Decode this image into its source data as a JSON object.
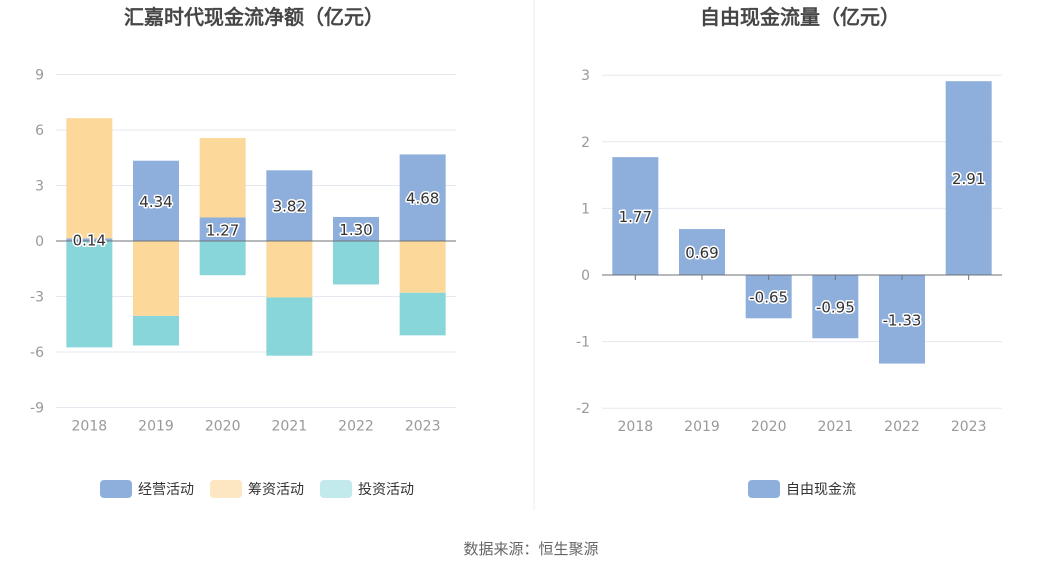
{
  "footer": {
    "source": "数据来源：恒生聚源"
  },
  "colors": {
    "operating": "#8eaedb",
    "financing": "#fdd89b",
    "investing": "#88d6da",
    "legend_financing": "#fde7c2",
    "legend_investing": "#c2e9ec",
    "free_cash_flow": "#8eaedb",
    "axis": "#6e7079",
    "grid": "#e6e8f0",
    "tick_label": "#999999",
    "title": "#464646"
  },
  "chart_data": [
    {
      "type": "bar",
      "stacked": true,
      "title": "汇嘉时代现金流净额（亿元）",
      "categories": [
        "2018",
        "2019",
        "2020",
        "2021",
        "2022",
        "2023"
      ],
      "ylim": [
        -9,
        9
      ],
      "yticks": [
        "9",
        "6",
        "3",
        "0",
        "-3",
        "-6",
        "-9"
      ],
      "grid": true,
      "legend_position": "bottom",
      "series": [
        {
          "name": "经营活动",
          "values": [
            0.14,
            4.34,
            1.27,
            3.82,
            1.3,
            4.68
          ],
          "labels": [
            "0.14",
            "4.34",
            "1.27",
            "3.82",
            "1.30",
            "4.68"
          ]
        },
        {
          "name": "筹资活动",
          "values": [
            6.5,
            -4.05,
            4.3,
            -3.05,
            0,
            -2.8
          ]
        },
        {
          "name": "投资活动",
          "values": [
            -5.75,
            -1.6,
            -1.85,
            -3.15,
            -2.35,
            -2.3
          ]
        }
      ]
    },
    {
      "type": "bar",
      "title": "自由现金流量（亿元）",
      "categories": [
        "2018",
        "2019",
        "2020",
        "2021",
        "2022",
        "2023"
      ],
      "ylim": [
        -2,
        3
      ],
      "yticks": [
        "3",
        "2",
        "1",
        "0",
        "-1",
        "-2"
      ],
      "grid": true,
      "legend_position": "bottom",
      "series": [
        {
          "name": "自由现金流",
          "values": [
            1.77,
            0.69,
            -0.65,
            -0.95,
            -1.33,
            2.91
          ],
          "labels": [
            "1.77",
            "0.69",
            "-0.65",
            "-0.95",
            "-1.33",
            "2.91"
          ]
        }
      ]
    }
  ]
}
